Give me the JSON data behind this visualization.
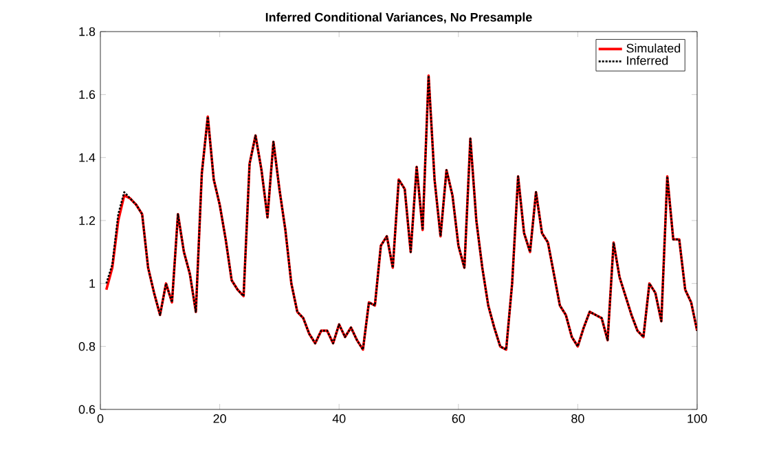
{
  "chart_data": {
    "type": "line",
    "title": "Inferred Conditional Variances, No Presample",
    "x": [
      1,
      2,
      3,
      4,
      5,
      6,
      7,
      8,
      9,
      10,
      11,
      12,
      13,
      14,
      15,
      16,
      17,
      18,
      19,
      20,
      21,
      22,
      23,
      24,
      25,
      26,
      27,
      28,
      29,
      30,
      31,
      32,
      33,
      34,
      35,
      36,
      37,
      38,
      39,
      40,
      41,
      42,
      43,
      44,
      45,
      46,
      47,
      48,
      49,
      50,
      51,
      52,
      53,
      54,
      55,
      56,
      57,
      58,
      59,
      60,
      61,
      62,
      63,
      64,
      65,
      66,
      67,
      68,
      69,
      70,
      71,
      72,
      73,
      74,
      75,
      76,
      77,
      78,
      79,
      80,
      81,
      82,
      83,
      84,
      85,
      86,
      87,
      88,
      89,
      90,
      91,
      92,
      93,
      94,
      95,
      96,
      97,
      98,
      99,
      100
    ],
    "series": [
      {
        "name": "Simulated",
        "color": "#ff0000",
        "line_style": "solid",
        "values": [
          0.98,
          1.05,
          1.2,
          1.28,
          1.27,
          1.25,
          1.22,
          1.05,
          0.97,
          0.9,
          1.0,
          0.94,
          1.22,
          1.1,
          1.03,
          0.91,
          1.35,
          1.53,
          1.33,
          1.25,
          1.14,
          1.01,
          0.98,
          0.96,
          1.38,
          1.47,
          1.36,
          1.21,
          1.45,
          1.3,
          1.17,
          1.0,
          0.91,
          0.89,
          0.84,
          0.81,
          0.85,
          0.85,
          0.81,
          0.87,
          0.83,
          0.86,
          0.82,
          0.79,
          0.94,
          0.93,
          1.12,
          1.15,
          1.05,
          1.33,
          1.3,
          1.1,
          1.37,
          1.17,
          1.66,
          1.33,
          1.15,
          1.36,
          1.28,
          1.12,
          1.05,
          1.46,
          1.2,
          1.05,
          0.93,
          0.86,
          0.8,
          0.79,
          1.0,
          1.34,
          1.16,
          1.1,
          1.29,
          1.16,
          1.13,
          1.03,
          0.93,
          0.9,
          0.83,
          0.8,
          0.86,
          0.91,
          0.9,
          0.89,
          0.82,
          1.13,
          1.02,
          0.96,
          0.9,
          0.85,
          0.83,
          1.0,
          0.97,
          0.88,
          1.34,
          1.14,
          1.14,
          0.98,
          0.94,
          0.85
        ]
      },
      {
        "name": "Inferred",
        "color": "#000000",
        "line_style": "dotted",
        "values": [
          1.0,
          1.06,
          1.22,
          1.29,
          1.27,
          1.25,
          1.22,
          1.05,
          0.97,
          0.9,
          1.0,
          0.94,
          1.22,
          1.1,
          1.03,
          0.91,
          1.35,
          1.53,
          1.33,
          1.25,
          1.14,
          1.01,
          0.98,
          0.96,
          1.38,
          1.47,
          1.36,
          1.21,
          1.45,
          1.3,
          1.17,
          1.0,
          0.91,
          0.89,
          0.84,
          0.81,
          0.85,
          0.85,
          0.81,
          0.87,
          0.83,
          0.86,
          0.82,
          0.79,
          0.94,
          0.93,
          1.12,
          1.15,
          1.05,
          1.33,
          1.3,
          1.1,
          1.37,
          1.17,
          1.66,
          1.33,
          1.15,
          1.36,
          1.28,
          1.12,
          1.05,
          1.46,
          1.2,
          1.05,
          0.93,
          0.86,
          0.8,
          0.79,
          1.0,
          1.34,
          1.16,
          1.1,
          1.29,
          1.16,
          1.13,
          1.03,
          0.93,
          0.9,
          0.83,
          0.8,
          0.86,
          0.91,
          0.9,
          0.89,
          0.82,
          1.13,
          1.02,
          0.96,
          0.9,
          0.85,
          0.83,
          1.0,
          0.97,
          0.88,
          1.34,
          1.14,
          1.14,
          0.98,
          0.94,
          0.85
        ]
      }
    ],
    "xlim": [
      0,
      100
    ],
    "xticks": [
      0,
      20,
      40,
      60,
      80,
      100
    ],
    "ylim": [
      0.6,
      1.8
    ],
    "yticks": [
      0.6,
      0.8,
      1,
      1.2,
      1.4,
      1.6,
      1.8
    ],
    "grid": false,
    "legend": "top right"
  }
}
